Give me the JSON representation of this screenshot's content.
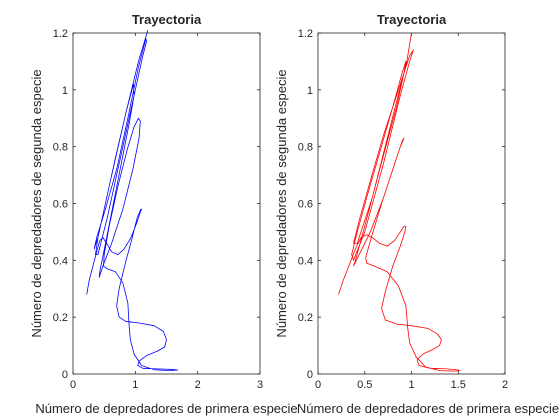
{
  "background": "#ffffff",
  "axis_color": "#262626",
  "chart_data": [
    {
      "type": "line",
      "title": "Trayectoria",
      "xlabel": "Número de depredadores de primera especie",
      "ylabel": "Número de depredadores de segunda especie",
      "xlim": [
        0,
        3
      ],
      "ylim": [
        0,
        1.2
      ],
      "xticks": [
        "0",
        "1",
        "2",
        "3"
      ],
      "yticks": [
        "0",
        "0.2",
        "0.4",
        "0.6",
        "0.8",
        "1",
        "1.2"
      ],
      "grid": false,
      "series": [
        {
          "color": "#0000ff",
          "x": [
            0.22,
            0.26,
            0.32,
            0.38,
            0.43,
            0.48,
            0.54,
            0.62,
            0.72,
            0.82,
            0.93,
            1.02,
            1.08,
            1.1,
            1.09,
            1.03,
            0.95,
            0.84,
            0.74,
            0.7,
            0.74,
            0.85,
            1.05,
            1.3,
            1.45,
            1.5,
            1.47,
            1.35,
            1.18,
            1.06,
            1.04,
            1.12,
            1.35,
            1.6,
            1.68,
            1.55,
            1.3,
            1.1,
            0.98,
            0.92,
            0.9,
            0.88,
            0.8,
            0.68,
            0.55,
            0.49,
            0.5,
            0.58,
            0.72,
            0.87,
            0.98,
            1.05,
            1.08,
            1.06,
            0.96,
            0.8,
            0.62,
            0.48,
            0.42,
            0.43,
            0.54,
            0.72,
            0.9,
            0.98,
            0.97,
            0.85,
            0.68,
            0.52,
            0.4,
            0.36,
            0.4,
            0.55,
            0.78,
            1.0,
            1.12,
            1.18,
            1.17,
            1.05,
            0.88,
            0.7,
            0.52,
            0.38,
            0.34,
            0.4,
            0.6,
            0.85,
            1.05,
            1.16,
            1.2
          ],
          "y": [
            0.28,
            0.33,
            0.38,
            0.43,
            0.47,
            0.48,
            0.46,
            0.43,
            0.42,
            0.44,
            0.48,
            0.53,
            0.57,
            0.58,
            0.58,
            0.55,
            0.48,
            0.39,
            0.3,
            0.24,
            0.2,
            0.185,
            0.18,
            0.17,
            0.15,
            0.12,
            0.095,
            0.08,
            0.065,
            0.045,
            0.03,
            0.02,
            0.018,
            0.016,
            0.014,
            0.012,
            0.015,
            0.03,
            0.07,
            0.12,
            0.17,
            0.25,
            0.32,
            0.36,
            0.37,
            0.38,
            0.42,
            0.52,
            0.66,
            0.79,
            0.87,
            0.9,
            0.89,
            0.83,
            0.72,
            0.58,
            0.46,
            0.38,
            0.34,
            0.36,
            0.48,
            0.68,
            0.88,
            0.98,
            1.02,
            0.92,
            0.76,
            0.6,
            0.48,
            0.42,
            0.42,
            0.55,
            0.78,
            1.0,
            1.12,
            1.17,
            1.18,
            1.08,
            0.9,
            0.72,
            0.58,
            0.48,
            0.44,
            0.48,
            0.68,
            0.92,
            1.1,
            1.18,
            1.21
          ]
        }
      ]
    },
    {
      "type": "line",
      "title": "Trayectoria",
      "xlabel": "Número de depredadores de primera especie",
      "ylabel": "Número de depredadores de segunda especie",
      "xlim": [
        0,
        2
      ],
      "ylim": [
        0,
        1.2
      ],
      "xticks": [
        "0",
        "0.5",
        "1",
        "1.5",
        "2"
      ],
      "yticks": [
        "0",
        "0.2",
        "0.4",
        "0.6",
        "0.8",
        "1",
        "1.2"
      ],
      "grid": false,
      "series": [
        {
          "color": "#ff0000",
          "x": [
            0.22,
            0.27,
            0.33,
            0.4,
            0.46,
            0.52,
            0.58,
            0.66,
            0.74,
            0.82,
            0.88,
            0.92,
            0.94,
            0.93,
            0.88,
            0.8,
            0.72,
            0.68,
            0.72,
            0.85,
            1.0,
            1.18,
            1.28,
            1.32,
            1.3,
            1.22,
            1.12,
            1.06,
            1.08,
            1.2,
            1.38,
            1.48,
            1.52,
            1.45,
            1.3,
            1.15,
            1.05,
            0.98,
            0.96,
            0.94,
            0.86,
            0.74,
            0.6,
            0.52,
            0.51,
            0.57,
            0.68,
            0.8,
            0.88,
            0.92,
            0.9,
            0.82,
            0.7,
            0.56,
            0.44,
            0.38,
            0.4,
            0.5,
            0.66,
            0.84,
            0.92,
            0.94,
            0.9,
            0.8,
            0.66,
            0.52,
            0.42,
            0.36,
            0.38,
            0.5,
            0.7,
            0.88,
            0.98,
            1.02,
            0.98,
            0.86,
            0.7,
            0.56,
            0.44,
            0.38,
            0.42,
            0.58,
            0.78,
            0.95,
            1.0
          ],
          "y": [
            0.28,
            0.33,
            0.38,
            0.44,
            0.48,
            0.49,
            0.48,
            0.46,
            0.45,
            0.47,
            0.5,
            0.52,
            0.52,
            0.5,
            0.45,
            0.38,
            0.29,
            0.23,
            0.19,
            0.175,
            0.17,
            0.16,
            0.14,
            0.12,
            0.1,
            0.085,
            0.07,
            0.05,
            0.03,
            0.02,
            0.018,
            0.015,
            0.012,
            0.01,
            0.012,
            0.025,
            0.06,
            0.11,
            0.16,
            0.24,
            0.31,
            0.36,
            0.38,
            0.39,
            0.41,
            0.48,
            0.6,
            0.72,
            0.8,
            0.83,
            0.82,
            0.74,
            0.62,
            0.5,
            0.42,
            0.38,
            0.4,
            0.52,
            0.72,
            0.94,
            1.06,
            1.1,
            1.06,
            0.94,
            0.78,
            0.62,
            0.5,
            0.42,
            0.4,
            0.5,
            0.74,
            0.98,
            1.1,
            1.14,
            1.12,
            1.0,
            0.84,
            0.68,
            0.54,
            0.46,
            0.46,
            0.62,
            0.88,
            1.1,
            1.2
          ]
        }
      ]
    }
  ]
}
